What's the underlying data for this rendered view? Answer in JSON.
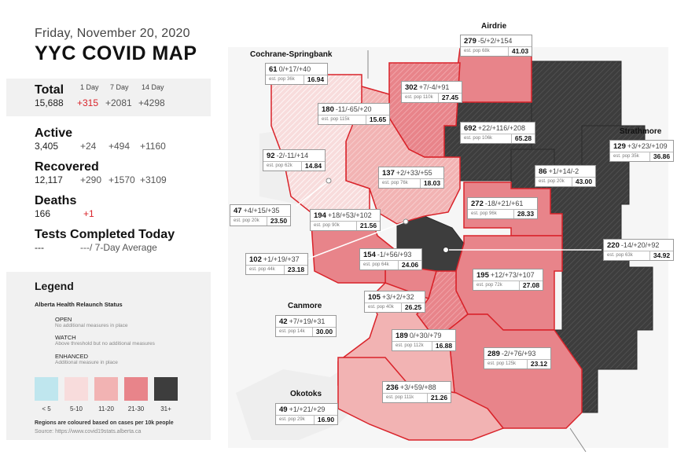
{
  "header": {
    "date": "Friday, November 20, 2020",
    "title": "YYC COVID MAP"
  },
  "stats": {
    "col_1day": "1 Day",
    "col_7day": "7 Day",
    "col_14day": "14 Day",
    "total": {
      "label": "Total",
      "value": "15,688",
      "d1": "+315",
      "d7": "+2081",
      "d14": "+4298"
    },
    "active": {
      "label": "Active",
      "value": "3,405",
      "d1": "+24",
      "d7": "+494",
      "d14": "+1160"
    },
    "recovered": {
      "label": "Recovered",
      "value": "12,117",
      "d1": "+290",
      "d7": "+1570",
      "d14": "+3109"
    },
    "deaths": {
      "label": "Deaths",
      "value": "166",
      "d1": "+1"
    },
    "tests": {
      "label": "Tests Completed Today",
      "value": "---",
      "avg": "---/ 7-Day Average"
    }
  },
  "legend": {
    "title": "Legend",
    "subtitle": "Alberta Health Relaunch Status",
    "open": {
      "name": "OPEN",
      "desc": "No additional measures in place"
    },
    "watch": {
      "name": "WATCH",
      "desc": "Above threshold but no additional measures"
    },
    "enhanced": {
      "name": "ENHANCED",
      "desc": "Additional measure in place"
    },
    "scale": [
      {
        "label": "< 5",
        "color": "#bfe6ee"
      },
      {
        "label": "5-10",
        "color": "#f8dcdc"
      },
      {
        "label": "11-20",
        "color": "#f2b3b3"
      },
      {
        "label": "21-30",
        "color": "#e8848a"
      },
      {
        "label": "31+",
        "color": "#3d3d3d"
      }
    ],
    "note": "Regions are coloured based on cases per 10k people",
    "source": "Source: https://www.covid19stats.alberta.ca"
  },
  "colors": {
    "accent_red": "#d9232a",
    "watch_border": "#d9232a",
    "level_5_10": "#f8dcdc",
    "level_11_20": "#f2b3b3",
    "level_21_30": "#e8848a",
    "level_31_plus": "#3d3d3d"
  },
  "places": {
    "airdrie": "Airdrie",
    "cochrane": "Cochrane-Springbank",
    "strathmore": "Strathmore",
    "canmore": "Canmore",
    "okotoks": "Okotoks"
  },
  "regions": [
    {
      "id": "airdrie",
      "cases": "279",
      "changes": "-5/+2/+154",
      "pop": "est. pop 68k",
      "rate": "41.03"
    },
    {
      "id": "cochrane",
      "cases": "61",
      "changes": "0/+17/+40",
      "pop": "est. pop 36k",
      "rate": "16.94"
    },
    {
      "id": "nw-north",
      "cases": "302",
      "changes": "+7/-4/+91",
      "pop": "est. pop 110k",
      "rate": "27.45"
    },
    {
      "id": "nw-west",
      "cases": "180",
      "changes": "-11/-65/+20",
      "pop": "est. pop 115k",
      "rate": "15.65"
    },
    {
      "id": "ne-north",
      "cases": "692",
      "changes": "+22/+116/+208",
      "pop": "est. pop 106k",
      "rate": "65.28"
    },
    {
      "id": "strathmore",
      "cases": "129",
      "changes": "+3/+23/+109",
      "pop": "est. pop 35k",
      "rate": "36.86"
    },
    {
      "id": "west-bow",
      "cases": "92",
      "changes": "-2/-11/+14",
      "pop": "est. pop 62k",
      "rate": "14.84"
    },
    {
      "id": "nw-central",
      "cases": "137",
      "changes": "+2/+33/+55",
      "pop": "est. pop 76k",
      "rate": "18.03"
    },
    {
      "id": "ne-east",
      "cases": "86",
      "changes": "+1/+14/-2",
      "pop": "est. pop 20k",
      "rate": "43.00"
    },
    {
      "id": "rocky-view-west",
      "cases": "47",
      "changes": "+4/+15/+35",
      "pop": "est. pop 20k",
      "rate": "23.50"
    },
    {
      "id": "west-central",
      "cases": "194",
      "changes": "+18/+53/+102",
      "pop": "est. pop 90k",
      "rate": "21.56"
    },
    {
      "id": "ne-central",
      "cases": "272",
      "changes": "-18/+21/+61",
      "pop": "est. pop 96k",
      "rate": "28.33"
    },
    {
      "id": "east-calgary",
      "cases": "220",
      "changes": "-14/+20/+92",
      "pop": "est. pop 63k",
      "rate": "34.92"
    },
    {
      "id": "west-sw",
      "cases": "102",
      "changes": "+1/+19/+37",
      "pop": "est. pop 44k",
      "rate": "23.18"
    },
    {
      "id": "sw-north",
      "cases": "154",
      "changes": "-1/+56/+93",
      "pop": "est. pop 64k",
      "rate": "24.06"
    },
    {
      "id": "se-north",
      "cases": "195",
      "changes": "+12/+73/+107",
      "pop": "est. pop 72k",
      "rate": "27.08"
    },
    {
      "id": "sw-central",
      "cases": "105",
      "changes": "+3/+2/+32",
      "pop": "est. pop 40k",
      "rate": "26.25"
    },
    {
      "id": "canmore",
      "cases": "42",
      "changes": "+7/+19/+31",
      "pop": "est. pop 14k",
      "rate": "30.00"
    },
    {
      "id": "sw-south",
      "cases": "189",
      "changes": "0/+30/+79",
      "pop": "est. pop 112k",
      "rate": "16.88"
    },
    {
      "id": "se-south",
      "cases": "289",
      "changes": "-2/+76/+93",
      "pop": "est. pop 125k",
      "rate": "23.12"
    },
    {
      "id": "south-calgary",
      "cases": "236",
      "changes": "+3/+59/+88",
      "pop": "est. pop 111k",
      "rate": "21.26"
    },
    {
      "id": "okotoks",
      "cases": "49",
      "changes": "+1/+21/+29",
      "pop": "est. pop 29k",
      "rate": "16.90"
    }
  ]
}
